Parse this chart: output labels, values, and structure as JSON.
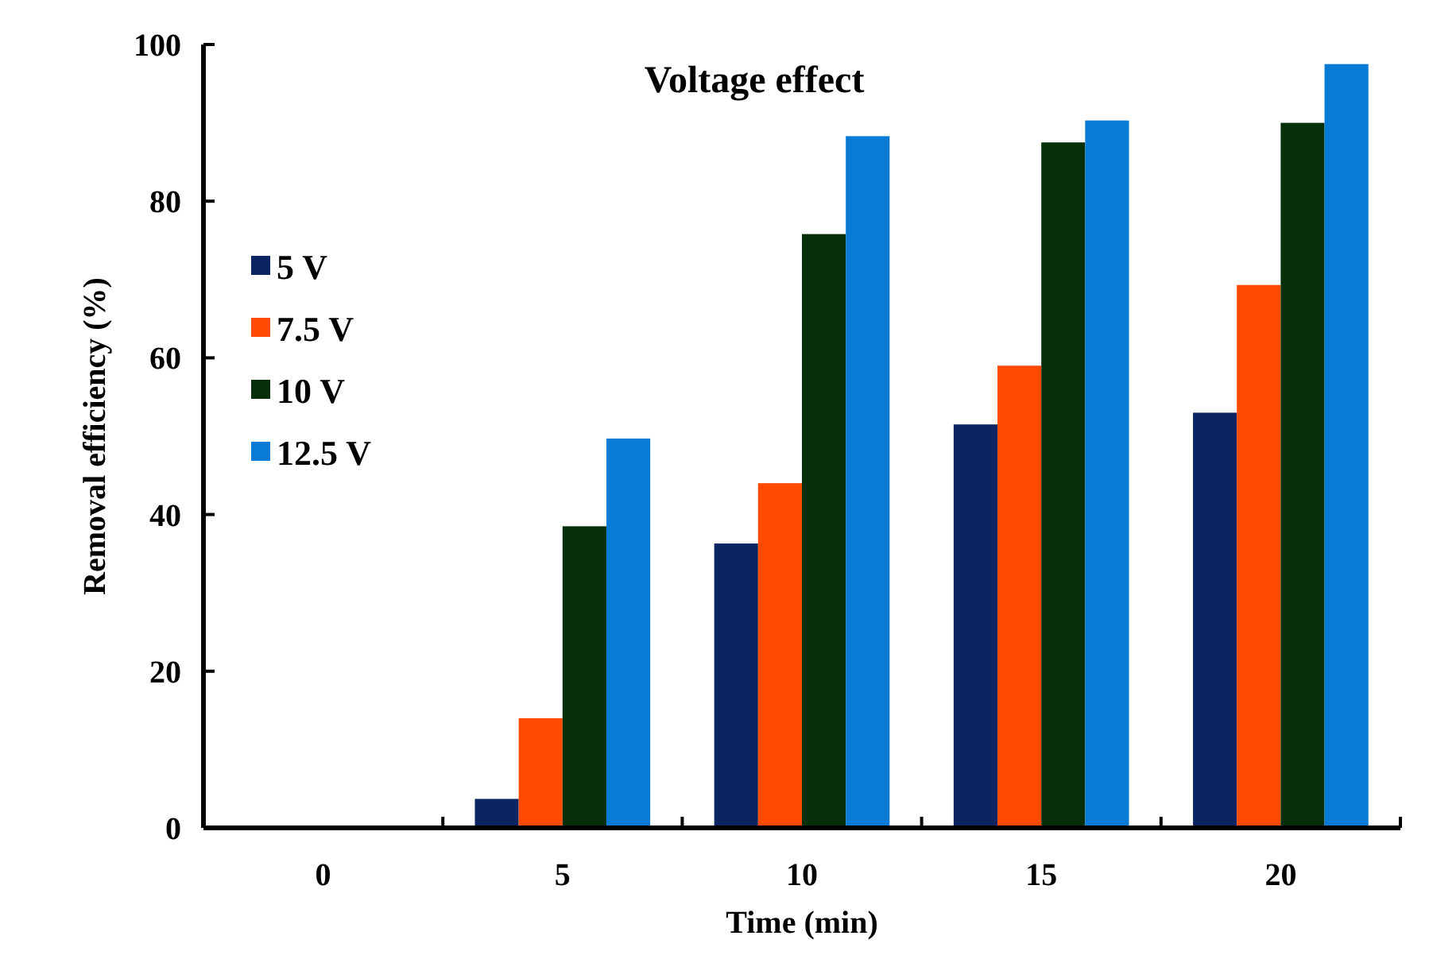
{
  "chart_data": {
    "type": "bar",
    "title": "Voltage effect",
    "xlabel": "Time (min)",
    "ylabel": "Removal efficiency (%)",
    "categories": [
      "0",
      "5",
      "10",
      "15",
      "20"
    ],
    "series": [
      {
        "name": "5 V",
        "color": "#0b2563",
        "values": [
          0,
          3.7,
          36.3,
          51.5,
          53
        ]
      },
      {
        "name": "7.5 V",
        "color": "#ff4a00",
        "values": [
          0,
          14,
          44,
          59,
          69.3
        ]
      },
      {
        "name": "10 V",
        "color": "#07300a",
        "values": [
          0,
          38.5,
          75.8,
          87.5,
          90
        ]
      },
      {
        "name": "12.5 V",
        "color": "#0a7bd4",
        "values": [
          0,
          49.7,
          88.3,
          90.3,
          97.5
        ]
      }
    ],
    "ylim": [
      0,
      100
    ],
    "yticks": [
      0,
      20,
      40,
      60,
      80,
      100
    ],
    "grid": false,
    "legend": "top left"
  }
}
